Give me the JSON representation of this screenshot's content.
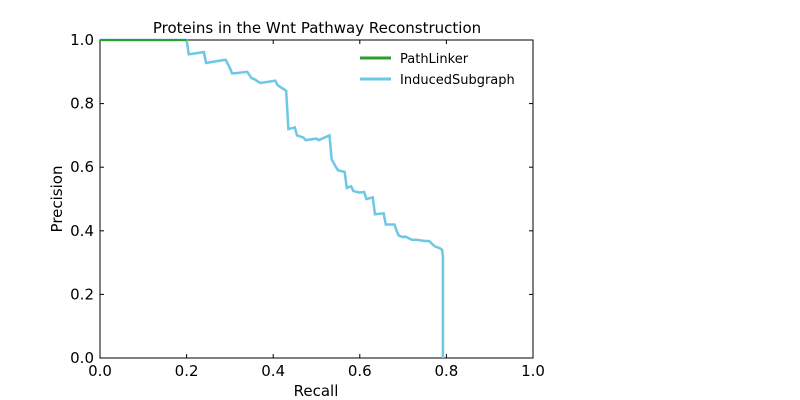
{
  "chart_data": {
    "type": "line",
    "title": "Proteins in the Wnt Pathway Reconstruction",
    "xlabel": "Recall",
    "ylabel": "Precision",
    "xlim": [
      0.0,
      1.0
    ],
    "ylim": [
      0.0,
      1.0
    ],
    "xticks": [
      "0.0",
      "0.2",
      "0.4",
      "0.6",
      "0.8",
      "1.0"
    ],
    "yticks": [
      "0.0",
      "0.2",
      "0.4",
      "0.6",
      "0.8",
      "1.0"
    ],
    "grid": false,
    "legend_position": "top-right",
    "series": [
      {
        "name": "PathLinker",
        "color": "#2ca02c",
        "x": [
          0.0,
          0.2
        ],
        "y": [
          1.0,
          1.0
        ]
      },
      {
        "name": "InducedSubgraph",
        "color": "#6cc8e6",
        "x": [
          0.0,
          0.2,
          0.205,
          0.24,
          0.245,
          0.29,
          0.3,
          0.305,
          0.31,
          0.34,
          0.35,
          0.355,
          0.37,
          0.385,
          0.405,
          0.41,
          0.43,
          0.435,
          0.45,
          0.455,
          0.47,
          0.475,
          0.5,
          0.505,
          0.53,
          0.535,
          0.545,
          0.55,
          0.565,
          0.57,
          0.58,
          0.585,
          0.6,
          0.61,
          0.615,
          0.63,
          0.635,
          0.655,
          0.66,
          0.68,
          0.685,
          0.69,
          0.7,
          0.705,
          0.72,
          0.73,
          0.75,
          0.76,
          0.77,
          0.775,
          0.785,
          0.79,
          0.792,
          0.792
        ],
        "y": [
          1.0,
          1.0,
          0.955,
          0.962,
          0.928,
          0.938,
          0.912,
          0.895,
          0.895,
          0.9,
          0.88,
          0.878,
          0.865,
          0.868,
          0.872,
          0.858,
          0.84,
          0.72,
          0.725,
          0.7,
          0.693,
          0.685,
          0.69,
          0.685,
          0.7,
          0.625,
          0.6,
          0.59,
          0.585,
          0.535,
          0.54,
          0.525,
          0.52,
          0.522,
          0.5,
          0.505,
          0.452,
          0.455,
          0.42,
          0.42,
          0.4,
          0.385,
          0.38,
          0.382,
          0.372,
          0.372,
          0.368,
          0.368,
          0.355,
          0.35,
          0.345,
          0.34,
          0.32,
          0.0
        ]
      }
    ]
  }
}
